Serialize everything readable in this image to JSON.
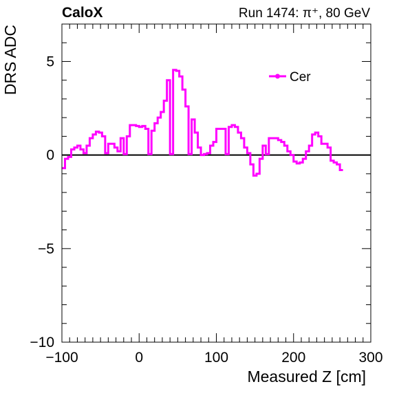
{
  "header": {
    "experiment": "CaloX",
    "run_info": "Run 1474:   π⁺, 80 GeV"
  },
  "colors": {
    "series": "#ff00ff",
    "axis": "#000000",
    "background": "#ffffff"
  },
  "chart_data": {
    "type": "line",
    "style": "step histogram",
    "xlabel": "Measured Z [cm]",
    "ylabel": "DRS ADC",
    "xlim": [
      -100,
      300
    ],
    "ylim": [
      -10,
      7
    ],
    "xticks": [
      -100,
      0,
      100,
      200,
      300
    ],
    "xtick_labels": [
      "−100",
      "0",
      "100",
      "200",
      "300"
    ],
    "yticks": [
      -10,
      -5,
      0,
      5
    ],
    "ytick_labels": [
      "−10",
      "−5",
      "0",
      "5"
    ],
    "zero_line": true,
    "grid": false,
    "legend_position": "top-right",
    "series": [
      {
        "name": "Cer",
        "bin_width": 4,
        "x_start": -100,
        "values": [
          -0.7,
          -0.2,
          -0.1,
          0.3,
          0.4,
          0.5,
          0.3,
          0.1,
          0.5,
          0.9,
          1.1,
          1.25,
          1.2,
          1.0,
          0.1,
          0.6,
          0.6,
          0.4,
          0.2,
          0.9,
          0.05,
          1.0,
          1.6,
          1.6,
          1.55,
          1.5,
          1.55,
          1.4,
          0.05,
          1.3,
          1.7,
          2.0,
          2.3,
          2.9,
          4.0,
          0.05,
          4.55,
          4.5,
          4.2,
          3.5,
          2.6,
          0.05,
          1.9,
          1.2,
          0.4,
          0.0,
          0.05,
          0.1,
          0.5,
          0.7,
          1.4,
          1.4,
          1.4,
          0.05,
          1.5,
          1.6,
          1.5,
          1.2,
          0.9,
          0.4,
          0.1,
          -0.5,
          -1.1,
          -1.0,
          -0.2,
          0.5,
          0.05,
          0.9,
          0.9,
          0.9,
          0.8,
          0.7,
          0.5,
          0.2,
          0.0,
          -0.35,
          -0.45,
          -0.4,
          -0.2,
          0.2,
          0.5,
          1.1,
          1.2,
          1.0,
          0.6,
          0.6,
          0.4,
          -0.3,
          -0.4,
          -0.5,
          -0.8
        ]
      }
    ]
  }
}
